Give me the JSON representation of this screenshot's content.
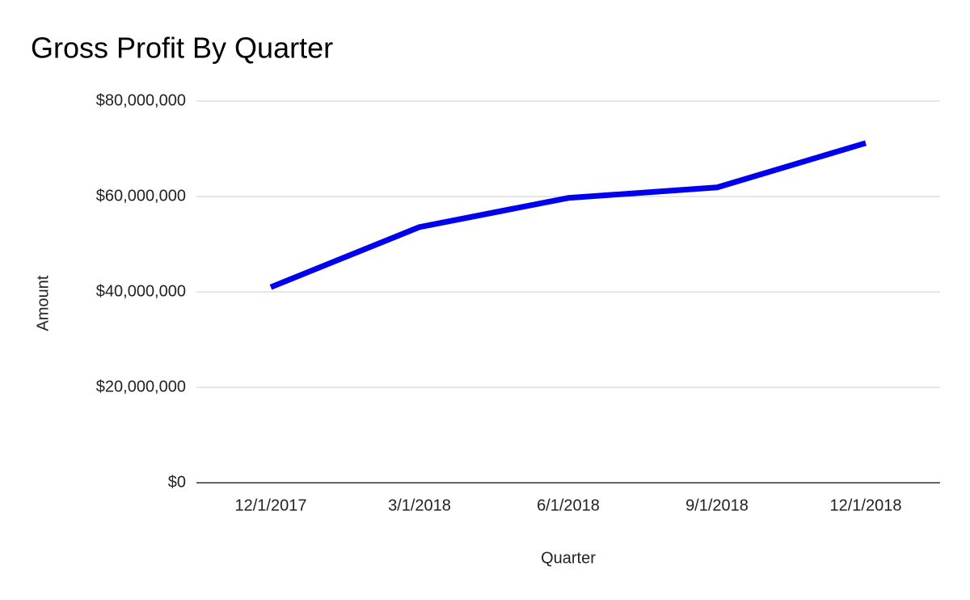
{
  "chart_data": {
    "type": "line",
    "title": "Gross Profit By Quarter",
    "x_label": "Quarter",
    "y_label": "Amount",
    "categories": [
      "12/1/2017",
      "3/1/2018",
      "6/1/2018",
      "9/1/2018",
      "12/1/2018"
    ],
    "series": [
      {
        "name": "Amount",
        "color": "#0000ee",
        "values": [
          41000000,
          53600000,
          59700000,
          61900000,
          71200000
        ]
      }
    ],
    "ylim": [
      0,
      80000000
    ],
    "yticks": [
      {
        "value": 0,
        "label": "$0"
      },
      {
        "value": 20000000,
        "label": "$20,000,000"
      },
      {
        "value": 40000000,
        "label": "$40,000,000"
      },
      {
        "value": 60000000,
        "label": "$60,000,000"
      },
      {
        "value": 80000000,
        "label": "$80,000,000"
      }
    ],
    "grid": true
  }
}
